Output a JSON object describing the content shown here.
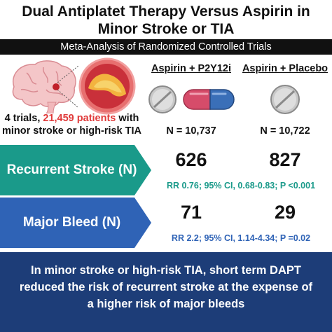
{
  "header": {
    "title_line1": "Dual Antiplatet Therapy Versus Aspirin in",
    "title_line2": "Minor Stroke or TIA",
    "subtitle": "Meta-Analysis of Randomized Controlled Trials"
  },
  "summary": {
    "prefix": "4 trials, ",
    "highlight": "21,459 patients",
    "suffix_line1": " with",
    "line2": "minor stroke or high-risk TIA"
  },
  "arms": [
    {
      "label": "Aspirin + P2Y12i",
      "n": "N = 10,737"
    },
    {
      "label": "Aspirin + Placebo",
      "n": "N = 10,722"
    }
  ],
  "outcomes": [
    {
      "label": "Recurrent Stroke (N)",
      "value_dapt": "626",
      "value_aspirin": "827",
      "stat": "RR 0.76; 95% CI, 0.68-0.83; P <0.001",
      "color": "#1a9a8a"
    },
    {
      "label": "Major Bleed (N)",
      "value_dapt": "71",
      "value_aspirin": "29",
      "stat": "RR 2.2; 95% CI, 1.14-4.34; P =0.02",
      "color": "#2f63b6"
    }
  ],
  "conclusion": {
    "line1": "In minor stroke or high-risk TIA, short term DAPT",
    "line2": "reduced the risk of recurrent stroke at the expense of",
    "line3": "a higher risk of major bleeds"
  },
  "colors": {
    "teal": "#1a9a8a",
    "blue": "#2f63b6",
    "navy": "#1d3d78",
    "highlight_red": "#e03a3a"
  },
  "icons": [
    "brain-icon",
    "artery-plaque-icon",
    "aspirin-pill-icon",
    "capsule-icon"
  ]
}
